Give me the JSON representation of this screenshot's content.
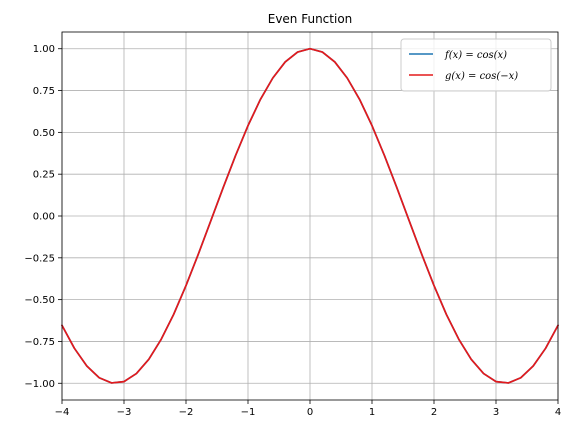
{
  "chart_data": {
    "type": "line",
    "title": "Even Function",
    "xlabel": "",
    "ylabel": "",
    "xlim": [
      -4,
      4
    ],
    "ylim": [
      -1.1,
      1.1
    ],
    "x_ticks": [
      -4,
      -3,
      -2,
      -1,
      0,
      1,
      2,
      3,
      4
    ],
    "x_tick_labels": [
      "−4",
      "−3",
      "−2",
      "−1",
      "0",
      "1",
      "2",
      "3",
      "4"
    ],
    "y_ticks": [
      -1.0,
      -0.75,
      -0.5,
      -0.25,
      0.0,
      0.25,
      0.5,
      0.75,
      1.0
    ],
    "y_tick_labels": [
      "−1.00",
      "−0.75",
      "−0.50",
      "−0.25",
      "0.00",
      "0.25",
      "0.50",
      "0.75",
      "1.00"
    ],
    "grid": true,
    "legend_position": "top-right",
    "x": [
      -4.0,
      -3.8,
      -3.6,
      -3.4,
      -3.2,
      -3.0,
      -2.8,
      -2.6,
      -2.4,
      -2.2,
      -2.0,
      -1.8,
      -1.6,
      -1.4,
      -1.2,
      -1.0,
      -0.8,
      -0.6,
      -0.4,
      -0.2,
      0.0,
      0.2,
      0.4,
      0.6,
      0.8,
      1.0,
      1.2,
      1.4,
      1.6,
      1.8,
      2.0,
      2.2,
      2.4,
      2.6,
      2.8,
      3.0,
      3.2,
      3.4,
      3.6,
      3.8,
      4.0
    ],
    "series": [
      {
        "name": "f(x) = cos(x)",
        "color": "#1f77b4",
        "values": [
          -0.654,
          -0.791,
          -0.897,
          -0.967,
          -0.998,
          -0.99,
          -0.942,
          -0.857,
          -0.737,
          -0.589,
          -0.416,
          -0.227,
          -0.029,
          0.17,
          0.362,
          0.54,
          0.697,
          0.825,
          0.921,
          0.98,
          1.0,
          0.98,
          0.921,
          0.825,
          0.697,
          0.54,
          0.362,
          0.17,
          -0.029,
          -0.227,
          -0.416,
          -0.589,
          -0.737,
          -0.857,
          -0.942,
          -0.99,
          -0.998,
          -0.967,
          -0.897,
          -0.791,
          -0.654
        ]
      },
      {
        "name": "g(x) = cos(−x)",
        "color": "#e31a1c",
        "values": [
          -0.654,
          -0.791,
          -0.897,
          -0.967,
          -0.998,
          -0.99,
          -0.942,
          -0.857,
          -0.737,
          -0.589,
          -0.416,
          -0.227,
          -0.029,
          0.17,
          0.362,
          0.54,
          0.697,
          0.825,
          0.921,
          0.98,
          1.0,
          0.98,
          0.921,
          0.825,
          0.697,
          0.54,
          0.362,
          0.17,
          -0.029,
          -0.227,
          -0.416,
          -0.589,
          -0.737,
          -0.857,
          -0.942,
          -0.99,
          -0.998,
          -0.967,
          -0.897,
          -0.791,
          -0.654
        ]
      }
    ]
  }
}
